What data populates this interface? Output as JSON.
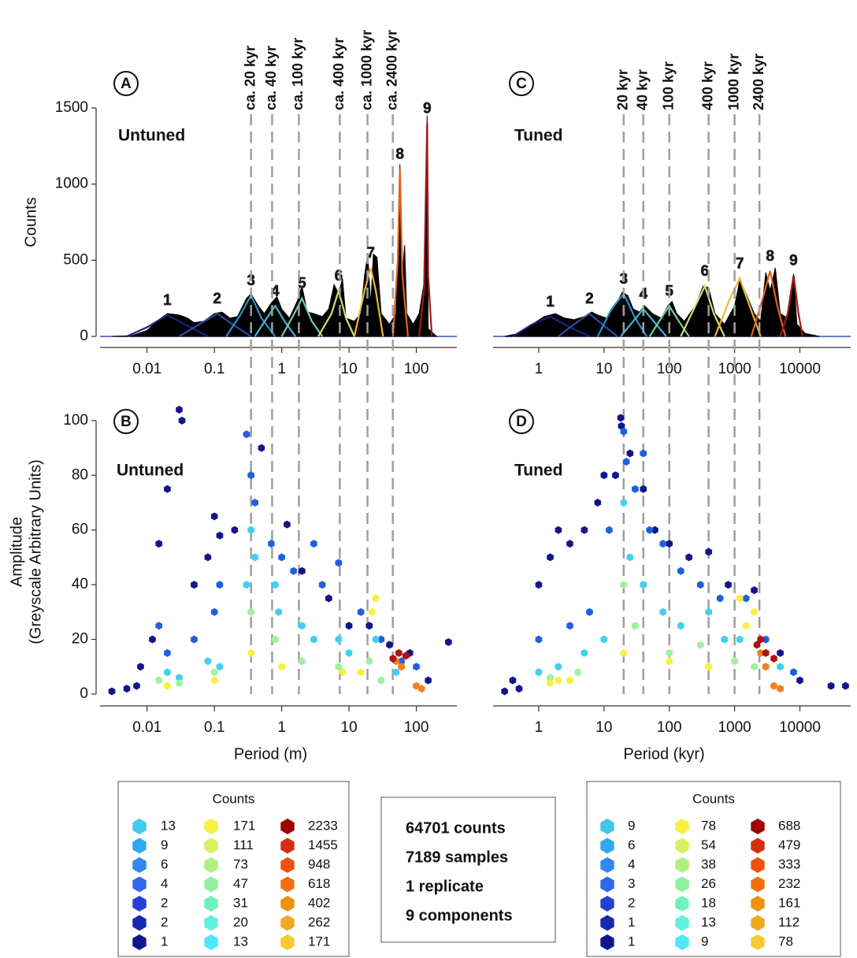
{
  "chart_data": [
    {
      "type": "area",
      "panel": "A",
      "label": "Untuned",
      "ylabel": "Counts",
      "xscale": "log",
      "color": "#000000",
      "xlim": [
        0.002,
        400
      ],
      "xticks": [
        0.01,
        0.1,
        1,
        10,
        100
      ],
      "ylim": [
        0,
        1500
      ],
      "yticks": [
        0,
        500,
        1000,
        1500
      ],
      "x": [
        0.003,
        0.006,
        0.01,
        0.015,
        0.02,
        0.03,
        0.04,
        0.05,
        0.07,
        0.1,
        0.13,
        0.17,
        0.22,
        0.3,
        0.35,
        0.45,
        0.55,
        0.7,
        0.85,
        1,
        1.3,
        1.7,
        2,
        2.4,
        3,
        4,
        5,
        6,
        7,
        8,
        9,
        12,
        15,
        17,
        19,
        21,
        23,
        26,
        30,
        40,
        50,
        57,
        62,
        67,
        72,
        90,
        110,
        130,
        145,
        150,
        200
      ],
      "values": [
        0,
        5,
        40,
        110,
        150,
        140,
        120,
        90,
        100,
        150,
        160,
        120,
        130,
        250,
        280,
        200,
        150,
        220,
        260,
        180,
        120,
        230,
        330,
        160,
        150,
        130,
        180,
        340,
        280,
        380,
        120,
        100,
        150,
        400,
        540,
        200,
        540,
        520,
        150,
        80,
        150,
        1130,
        400,
        600,
        150,
        80,
        150,
        350,
        1450,
        50,
        0
      ],
      "components": [
        {
          "name": "1",
          "color": "#1a237e",
          "x": [
            0.005,
            0.01,
            0.02,
            0.04,
            0.08
          ],
          "values": [
            0,
            60,
            140,
            70,
            0
          ]
        },
        {
          "name": "2",
          "color": "#2a4aa8",
          "x": [
            0.03,
            0.06,
            0.11,
            0.2,
            0.35
          ],
          "values": [
            0,
            80,
            150,
            70,
            0
          ]
        },
        {
          "name": "3",
          "color": "#2b8fc4",
          "x": [
            0.15,
            0.25,
            0.35,
            0.5,
            0.8
          ],
          "values": [
            0,
            150,
            270,
            120,
            0
          ]
        },
        {
          "name": "4",
          "color": "#40b8d0",
          "x": [
            0.4,
            0.6,
            0.8,
            1.1,
            1.6
          ],
          "values": [
            0,
            120,
            200,
            100,
            0
          ]
        },
        {
          "name": "5",
          "color": "#6ed0a6",
          "x": [
            1,
            1.5,
            2,
            2.8,
            4
          ],
          "values": [
            0,
            140,
            250,
            100,
            0
          ]
        },
        {
          "name": "6",
          "color": "#d8e068",
          "x": [
            3.5,
            5.5,
            7,
            9,
            12
          ],
          "values": [
            0,
            150,
            300,
            120,
            0
          ]
        },
        {
          "name": "7",
          "color": "#f0b830",
          "x": [
            12,
            17,
            21,
            25,
            32
          ],
          "values": [
            0,
            300,
            450,
            300,
            0
          ]
        },
        {
          "name": "8",
          "color": "#e06020",
          "x": [
            45,
            53,
            57,
            62,
            75
          ],
          "values": [
            0,
            500,
            1100,
            400,
            0
          ]
        },
        {
          "name": "9",
          "color": "#a01818",
          "x": [
            110,
            130,
            145,
            150,
            170
          ],
          "values": [
            0,
            300,
            1400,
            400,
            0
          ]
        }
      ],
      "vlines": [
        {
          "value": 0.35,
          "label": "ca. 20 kyr"
        },
        {
          "value": 0.72,
          "label": "ca. 40 kyr"
        },
        {
          "value": 1.8,
          "label": "ca. 100 kyr"
        },
        {
          "value": 7.3,
          "label": "ca. 400 kyr"
        },
        {
          "value": 18.8,
          "label": "ca. 1000 kyr"
        },
        {
          "value": 44.7,
          "label": "ca. 2400 kyr"
        }
      ],
      "vline_color": "#9e9e9e"
    },
    {
      "type": "hexbin",
      "panel": "B",
      "label": "Untuned",
      "ylabel": [
        "Amplitude",
        "(Greyscale Arbitrary Units)"
      ],
      "xlabel": "Period (m)",
      "xscale": "log",
      "xlim": [
        0.002,
        400
      ],
      "xticks": [
        0.01,
        0.1,
        1,
        10,
        100
      ],
      "ylim": [
        0,
        104
      ],
      "yticks": [
        0,
        20,
        40,
        60,
        80,
        100
      ],
      "series": [
        {
          "color": "#14148c",
          "x": [
            0.003,
            0.005,
            0.007,
            0.008,
            0.012,
            0.015,
            0.02,
            0.03,
            0.033,
            0.05,
            0.08,
            0.1,
            0.12,
            0.2,
            0.5,
            1.2,
            2,
            5,
            10,
            20,
            40,
            80,
            150,
            300
          ],
          "y": [
            1,
            2,
            3,
            10,
            20,
            55,
            75,
            104,
            100,
            40,
            50,
            65,
            58,
            60,
            90,
            62,
            45,
            35,
            25,
            25,
            18,
            15,
            5,
            19
          ]
        },
        {
          "color": "#2060e0",
          "x": [
            0.015,
            0.02,
            0.05,
            0.1,
            0.12,
            0.3,
            0.35,
            0.4,
            0.7,
            1,
            1.5,
            3,
            4,
            7,
            15,
            30,
            60,
            100
          ],
          "y": [
            25,
            15,
            20,
            30,
            40,
            95,
            80,
            70,
            55,
            50,
            45,
            55,
            40,
            48,
            30,
            20,
            12,
            10
          ]
        },
        {
          "color": "#40d0f0",
          "x": [
            0.02,
            0.03,
            0.08,
            0.12,
            0.3,
            0.35,
            0.4,
            0.8,
            0.9,
            2,
            3,
            7,
            10,
            25,
            50
          ],
          "y": [
            8,
            6,
            12,
            10,
            40,
            60,
            50,
            40,
            30,
            25,
            20,
            20,
            15,
            20,
            8
          ]
        },
        {
          "color": "#a0f0a0",
          "x": [
            0.015,
            0.03,
            0.1,
            0.35,
            0.8,
            2,
            7,
            20,
            30
          ],
          "y": [
            5,
            4,
            8,
            30,
            20,
            12,
            10,
            12,
            5
          ]
        },
        {
          "color": "#f8f040",
          "x": [
            0.02,
            0.1,
            0.35,
            1,
            8,
            15,
            22,
            25
          ],
          "y": [
            3,
            5,
            15,
            10,
            8,
            8,
            30,
            35
          ]
        },
        {
          "color": "#f08020",
          "x": [
            50,
            60,
            100,
            120
          ],
          "y": [
            12,
            10,
            3,
            2
          ]
        },
        {
          "color": "#b01010",
          "x": [
            45,
            55,
            70
          ],
          "y": [
            13,
            15,
            14
          ]
        }
      ]
    },
    {
      "type": "area",
      "panel": "C",
      "label": "Tuned",
      "xscale": "log",
      "color": "#000000",
      "xlim": [
        0.2,
        60000
      ],
      "xticks": [
        1,
        10,
        100,
        1000,
        10000
      ],
      "ylim": [
        0,
        1500
      ],
      "x": [
        0.3,
        0.5,
        0.8,
        1.2,
        1.8,
        2.5,
        3.5,
        5,
        6.5,
        8,
        11,
        15,
        19,
        23,
        28,
        35,
        42,
        55,
        75,
        95,
        110,
        130,
        170,
        250,
        330,
        400,
        500,
        700,
        1000,
        1200,
        1500,
        2000,
        2500,
        3000,
        3500,
        4200,
        5000,
        6500,
        8000,
        9000,
        12000,
        20000
      ],
      "values": [
        0,
        20,
        80,
        130,
        150,
        120,
        110,
        130,
        160,
        140,
        120,
        200,
        290,
        270,
        180,
        160,
        200,
        150,
        120,
        200,
        230,
        150,
        100,
        200,
        330,
        320,
        150,
        80,
        200,
        370,
        280,
        150,
        100,
        420,
        300,
        450,
        150,
        120,
        410,
        80,
        20,
        0
      ],
      "components": [
        {
          "name": "1",
          "color": "#1a237e",
          "x": [
            0.4,
            0.8,
            1.5,
            3,
            6
          ],
          "values": [
            0,
            80,
            130,
            60,
            0
          ]
        },
        {
          "name": "2",
          "color": "#2a4aa8",
          "x": [
            2,
            3.5,
            6,
            10,
            16
          ],
          "values": [
            0,
            80,
            150,
            70,
            0
          ]
        },
        {
          "name": "3",
          "color": "#2b8fc4",
          "x": [
            8,
            13,
            20,
            30,
            45
          ],
          "values": [
            0,
            180,
            280,
            120,
            0
          ]
        },
        {
          "name": "4",
          "color": "#40b8d0",
          "x": [
            18,
            28,
            40,
            60,
            90
          ],
          "values": [
            0,
            100,
            180,
            90,
            0
          ]
        },
        {
          "name": "5",
          "color": "#6ed0a6",
          "x": [
            50,
            75,
            100,
            140,
            200
          ],
          "values": [
            0,
            120,
            200,
            100,
            0
          ]
        },
        {
          "name": "6",
          "color": "#d8e068",
          "x": [
            150,
            250,
            350,
            480,
            700
          ],
          "values": [
            0,
            200,
            330,
            150,
            0
          ]
        },
        {
          "name": "7",
          "color": "#f0b830",
          "x": [
            500,
            850,
            1200,
            1700,
            2500
          ],
          "values": [
            0,
            250,
            380,
            200,
            0
          ]
        },
        {
          "name": "8",
          "color": "#e06020",
          "x": [
            1800,
            2700,
            3500,
            4500,
            6000
          ],
          "values": [
            0,
            250,
            430,
            200,
            0
          ]
        },
        {
          "name": "9",
          "color": "#a01818",
          "x": [
            5000,
            6500,
            8000,
            9500,
            11000
          ],
          "values": [
            0,
            150,
            400,
            150,
            0
          ]
        }
      ],
      "vlines": [
        {
          "value": 20,
          "label": "20 kyr"
        },
        {
          "value": 40,
          "label": "40 kyr"
        },
        {
          "value": 100,
          "label": "100 kyr"
        },
        {
          "value": 400,
          "label": "400 kyr"
        },
        {
          "value": 1000,
          "label": "1000 kyr"
        },
        {
          "value": 2400,
          "label": "2400 kyr"
        }
      ],
      "vline_color": "#9e9e9e"
    },
    {
      "type": "hexbin",
      "panel": "D",
      "label": "Tuned",
      "xlabel": "Period (kyr)",
      "xscale": "log",
      "xlim": [
        0.2,
        60000
      ],
      "xticks": [
        1,
        10,
        100,
        1000,
        10000
      ],
      "ylim": [
        0,
        104
      ],
      "series": [
        {
          "color": "#14148c",
          "x": [
            0.3,
            0.4,
            0.5,
            1,
            1.5,
            2,
            3,
            5,
            8,
            10,
            15,
            18,
            18.5,
            25,
            40,
            60,
            100,
            200,
            400,
            800,
            2000,
            5000,
            10000,
            30000,
            50000
          ],
          "y": [
            1,
            5,
            2,
            40,
            50,
            60,
            55,
            60,
            70,
            80,
            80,
            101,
            98,
            88,
            75,
            60,
            55,
            50,
            52,
            40,
            38,
            15,
            5,
            3,
            3
          ]
        },
        {
          "color": "#2060e0",
          "x": [
            1,
            3,
            6,
            12,
            20,
            22,
            30,
            40,
            50,
            80,
            150,
            300,
            600,
            1500,
            3000,
            8000
          ],
          "y": [
            20,
            25,
            30,
            60,
            96,
            85,
            75,
            88,
            60,
            55,
            45,
            40,
            35,
            35,
            20,
            8
          ]
        },
        {
          "color": "#40d0f0",
          "x": [
            1,
            2,
            5,
            10,
            20,
            25,
            40,
            80,
            150,
            400,
            700,
            1200,
            5000
          ],
          "y": [
            8,
            10,
            15,
            20,
            70,
            50,
            40,
            30,
            25,
            30,
            20,
            20,
            10
          ]
        },
        {
          "color": "#a0f0a0",
          "x": [
            1.5,
            4,
            20,
            30,
            100,
            300,
            1000,
            2000
          ],
          "y": [
            6,
            8,
            40,
            25,
            15,
            18,
            12,
            10
          ]
        },
        {
          "color": "#f8f040",
          "x": [
            1.5,
            2,
            3,
            20,
            100,
            400,
            1200,
            1500,
            2000
          ],
          "y": [
            4,
            5,
            5,
            15,
            12,
            10,
            35,
            25,
            30
          ]
        },
        {
          "color": "#f08020",
          "x": [
            2500,
            3000,
            4000,
            5000
          ],
          "y": [
            15,
            10,
            3,
            2
          ]
        },
        {
          "color": "#b01010",
          "x": [
            2200,
            2500,
            3000,
            4000
          ],
          "y": [
            18,
            20,
            15,
            13
          ]
        }
      ]
    }
  ],
  "legends": [
    {
      "title": "Counts",
      "columns": [
        {
          "colors": [
            "#40c8f0",
            "#30a8f0",
            "#3088f0",
            "#3068e8",
            "#2040d0",
            "#1828b0",
            "#101890"
          ],
          "labels": [
            13,
            9,
            6,
            4,
            2,
            2,
            1
          ]
        },
        {
          "colors": [
            "#f8f040",
            "#d8f060",
            "#b0f080",
            "#90f0a0",
            "#70f0c0",
            "#60f0e0",
            "#50e8f8"
          ],
          "labels": [
            171,
            111,
            73,
            47,
            31,
            20,
            13
          ]
        },
        {
          "colors": [
            "#a00000",
            "#d03010",
            "#f05010",
            "#f07010",
            "#f09010",
            "#f0a820",
            "#f8c830"
          ],
          "labels": [
            2233,
            1455,
            948,
            618,
            402,
            262,
            171
          ]
        }
      ]
    },
    {
      "title": "Counts",
      "columns": [
        {
          "colors": [
            "#40c8f0",
            "#30a8f0",
            "#3088f0",
            "#3068e8",
            "#2040d0",
            "#1828b0",
            "#101890"
          ],
          "labels": [
            9,
            6,
            4,
            3,
            2,
            1,
            1
          ]
        },
        {
          "colors": [
            "#f8f040",
            "#d8f060",
            "#b0f080",
            "#90f0a0",
            "#70f0c0",
            "#60f0e0",
            "#50e8f8"
          ],
          "labels": [
            78,
            54,
            38,
            26,
            18,
            13,
            9
          ]
        },
        {
          "colors": [
            "#a00000",
            "#d03010",
            "#f05010",
            "#f07010",
            "#f09010",
            "#f0a820",
            "#f8c830"
          ],
          "labels": [
            688,
            479,
            333,
            232,
            161,
            112,
            78
          ]
        }
      ]
    }
  ],
  "summary": [
    "64701 counts",
    "7189 samples",
    "1 replicate",
    "9 components"
  ]
}
